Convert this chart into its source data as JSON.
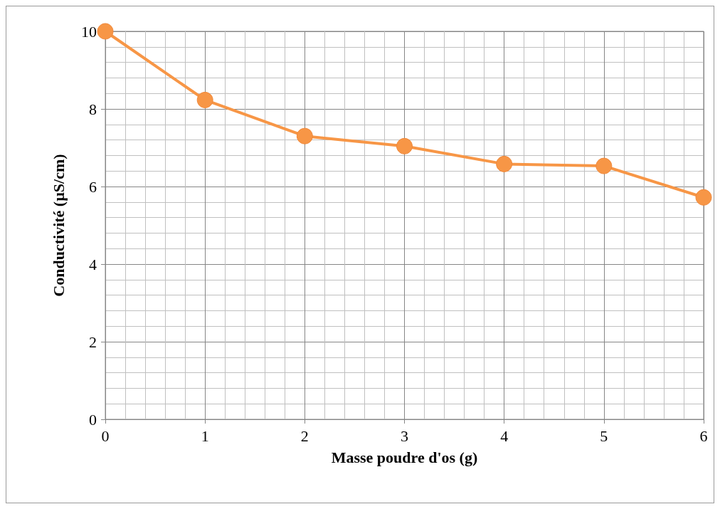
{
  "chart_data": {
    "type": "line",
    "xlabel": "Masse poudre d'os (g)",
    "ylabel": "Conductivité (µS/cm)",
    "x": [
      0,
      1,
      2,
      3,
      4,
      5,
      6
    ],
    "series": [
      {
        "color": "#f79646",
        "values": [
          10,
          8.23,
          7.3,
          7.04,
          6.58,
          6.53,
          5.72
        ]
      }
    ],
    "xlim": [
      0,
      6
    ],
    "xticks": [
      0,
      1,
      2,
      3,
      4,
      5,
      6
    ],
    "ylim": [
      0,
      10
    ],
    "yticks": [
      0,
      2,
      4,
      6,
      8,
      10
    ],
    "grid": true,
    "marker": "circle",
    "line_style": "solid"
  }
}
